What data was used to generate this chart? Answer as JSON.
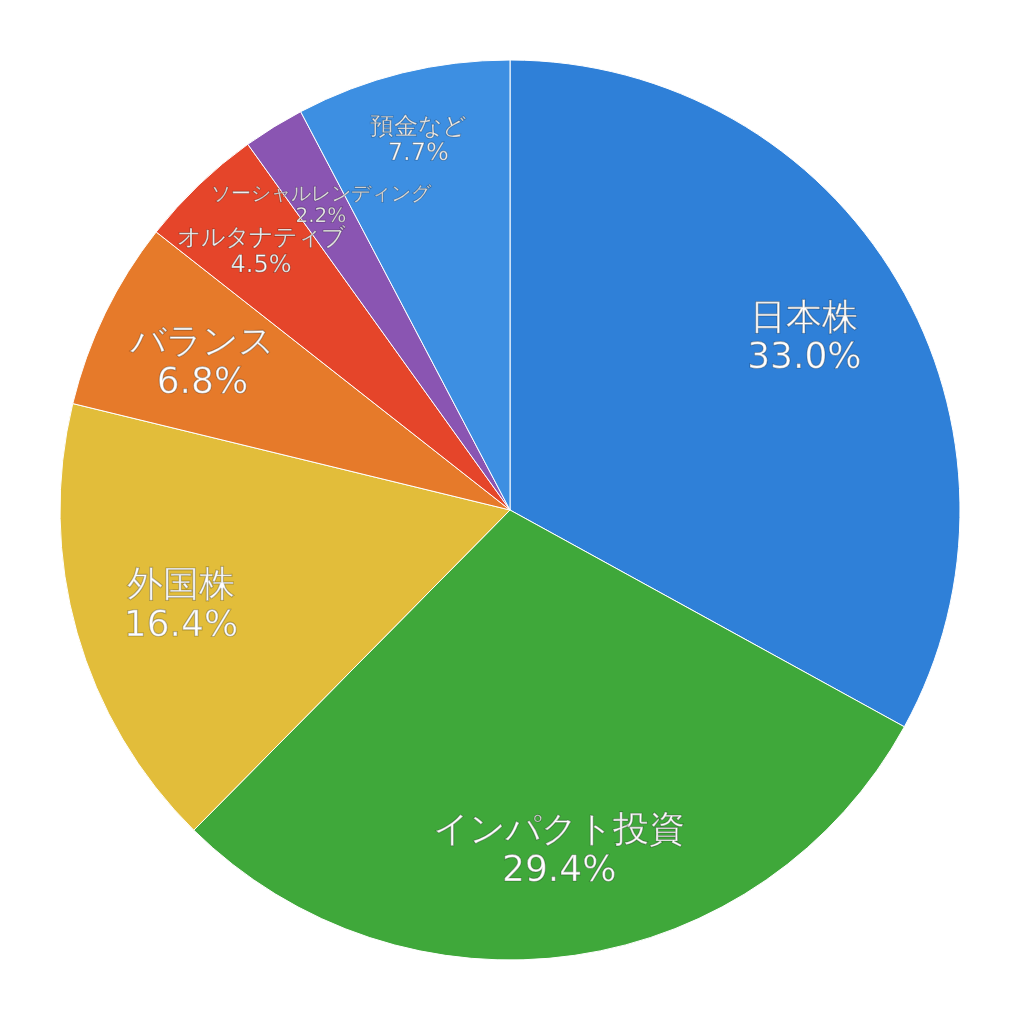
{
  "chart_data": {
    "type": "pie",
    "categories": [
      "日本株",
      "インパクト投資",
      "外国株",
      "バランス",
      "オルタナティブ",
      "ソーシャルレンディング",
      "預金など"
    ],
    "values": [
      33.0,
      29.4,
      16.4,
      6.8,
      4.5,
      2.2,
      7.7
    ],
    "colors": [
      "#2f80d8",
      "#3fa83a",
      "#e2bd3a",
      "#e67a2a",
      "#e5452a",
      "#8a55b2",
      "#3d8fe2"
    ],
    "value_labels": [
      "33.0%",
      "29.4%",
      "16.4%",
      "6.8%",
      "4.5%",
      "2.2%",
      "7.7%"
    ]
  }
}
